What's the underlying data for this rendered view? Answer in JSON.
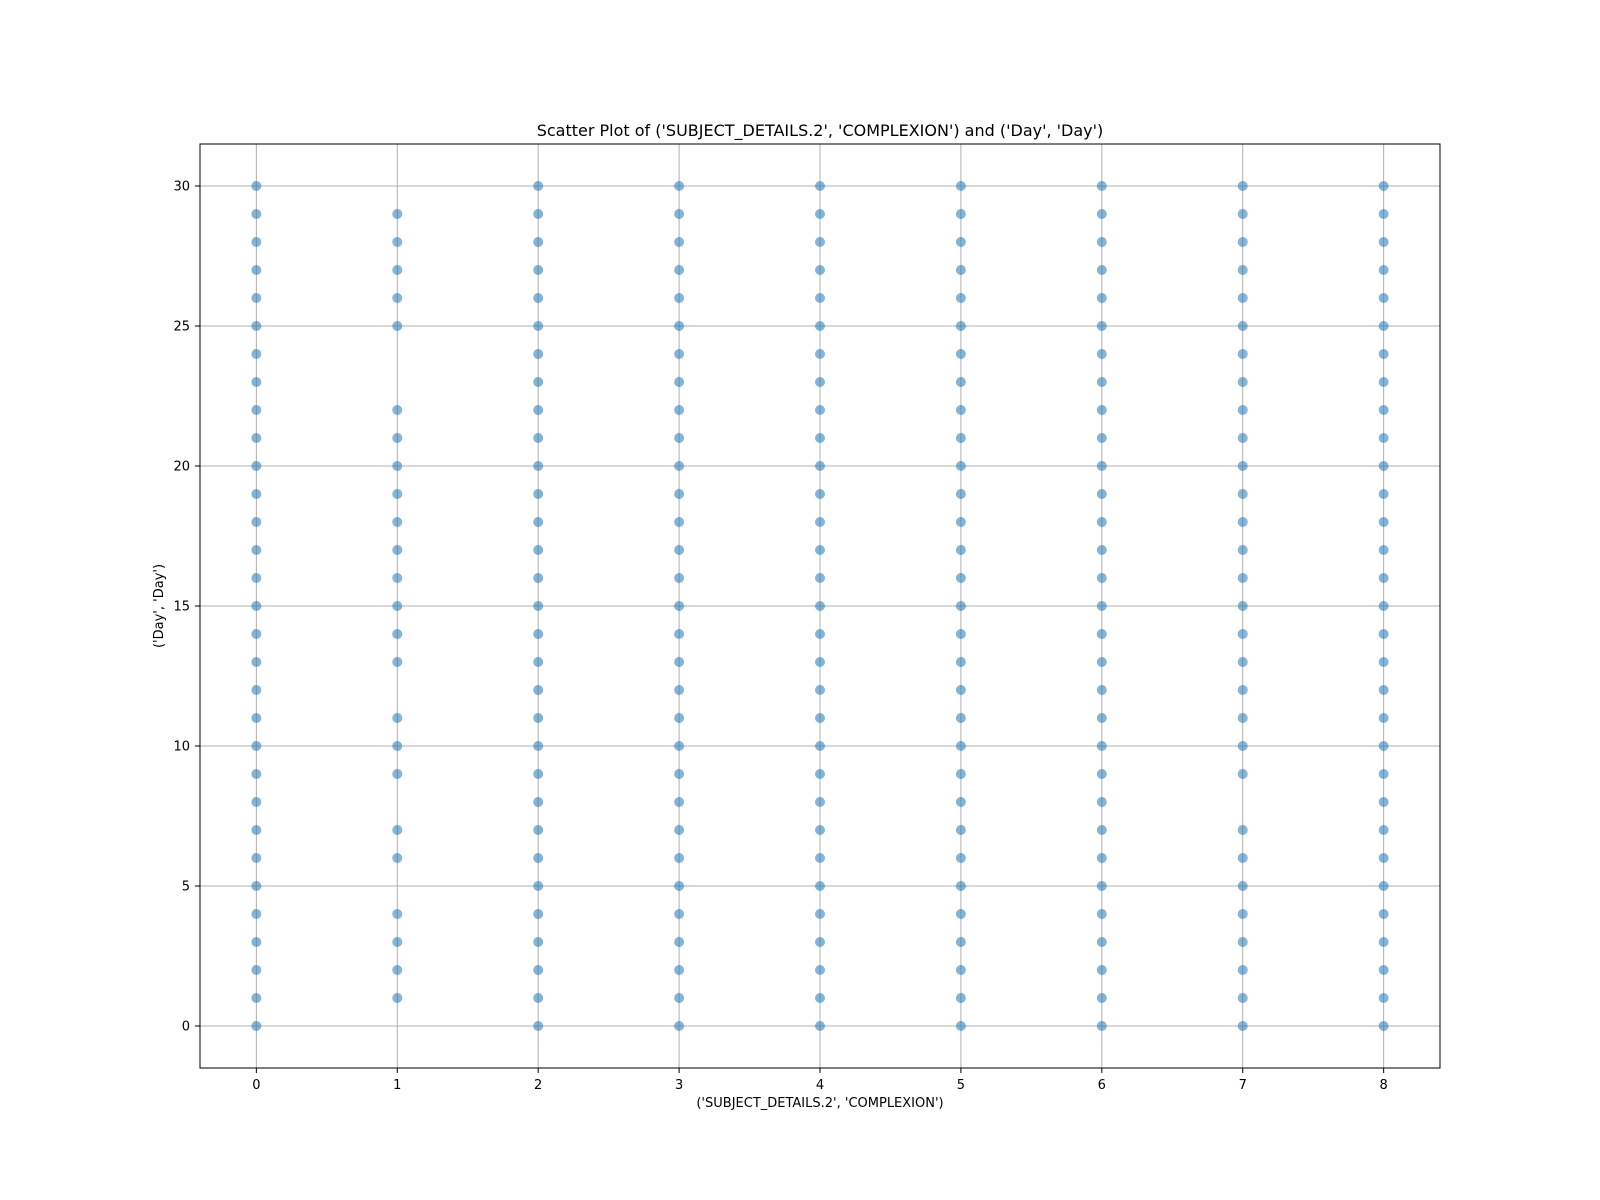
{
  "chart_data": {
    "type": "scatter",
    "title": "Scatter Plot of ('SUBJECT_DETAILS.2', 'COMPLEXION') and ('Day', 'Day')",
    "xlabel": "('SUBJECT_DETAILS.2', 'COMPLEXION')",
    "ylabel": "('Day', 'Day')",
    "xlim": [
      -0.4,
      8.4
    ],
    "ylim": [
      -1.5,
      31.5
    ],
    "xticks": [
      0,
      1,
      2,
      3,
      4,
      5,
      6,
      7,
      8
    ],
    "yticks": [
      0,
      5,
      10,
      15,
      20,
      25,
      30
    ],
    "grid": true,
    "marker_color": "#1f77b4",
    "series": [
      {
        "points": [
          {
            "x": 0,
            "y": [
              0,
              1,
              2,
              3,
              4,
              5,
              6,
              7,
              8,
              9,
              10,
              11,
              12,
              13,
              14,
              15,
              16,
              17,
              18,
              19,
              20,
              21,
              22,
              23,
              24,
              25,
              26,
              27,
              28,
              29,
              30
            ]
          },
          {
            "x": 1,
            "y": [
              1,
              2,
              3,
              4,
              6,
              7,
              9,
              10,
              11,
              13,
              14,
              15,
              16,
              17,
              18,
              19,
              20,
              21,
              22,
              25,
              26,
              27,
              28,
              29
            ]
          },
          {
            "x": 2,
            "y": [
              0,
              1,
              2,
              3,
              4,
              5,
              6,
              7,
              8,
              9,
              10,
              11,
              12,
              13,
              14,
              15,
              16,
              17,
              18,
              19,
              20,
              21,
              22,
              23,
              24,
              25,
              26,
              27,
              28,
              29,
              30
            ]
          },
          {
            "x": 3,
            "y": [
              0,
              1,
              2,
              3,
              4,
              5,
              6,
              7,
              8,
              9,
              10,
              11,
              12,
              13,
              14,
              15,
              16,
              17,
              18,
              19,
              20,
              21,
              22,
              23,
              24,
              25,
              26,
              27,
              28,
              29,
              30
            ]
          },
          {
            "x": 4,
            "y": [
              0,
              1,
              2,
              3,
              4,
              5,
              6,
              7,
              8,
              9,
              10,
              11,
              12,
              13,
              14,
              15,
              16,
              17,
              18,
              19,
              20,
              21,
              22,
              23,
              24,
              25,
              26,
              27,
              28,
              29,
              30
            ]
          },
          {
            "x": 5,
            "y": [
              0,
              1,
              2,
              3,
              4,
              5,
              6,
              7,
              8,
              9,
              10,
              11,
              12,
              13,
              14,
              15,
              16,
              17,
              18,
              19,
              20,
              21,
              22,
              23,
              24,
              25,
              26,
              27,
              28,
              29,
              30
            ]
          },
          {
            "x": 6,
            "y": [
              0,
              1,
              2,
              3,
              4,
              5,
              6,
              7,
              8,
              9,
              10,
              11,
              12,
              13,
              14,
              15,
              16,
              17,
              18,
              19,
              20,
              21,
              22,
              23,
              24,
              25,
              26,
              27,
              28,
              29,
              30
            ]
          },
          {
            "x": 7,
            "y": [
              0,
              1,
              2,
              3,
              4,
              5,
              6,
              7,
              9,
              10,
              11,
              12,
              13,
              14,
              15,
              16,
              17,
              18,
              19,
              20,
              21,
              22,
              23,
              24,
              25,
              26,
              27,
              28,
              29,
              30
            ]
          },
          {
            "x": 8,
            "y": [
              0,
              1,
              2,
              3,
              4,
              5,
              6,
              7,
              8,
              9,
              10,
              11,
              12,
              13,
              14,
              15,
              16,
              17,
              18,
              19,
              20,
              21,
              22,
              23,
              24,
              25,
              26,
              27,
              28,
              29,
              30
            ]
          }
        ]
      }
    ]
  }
}
